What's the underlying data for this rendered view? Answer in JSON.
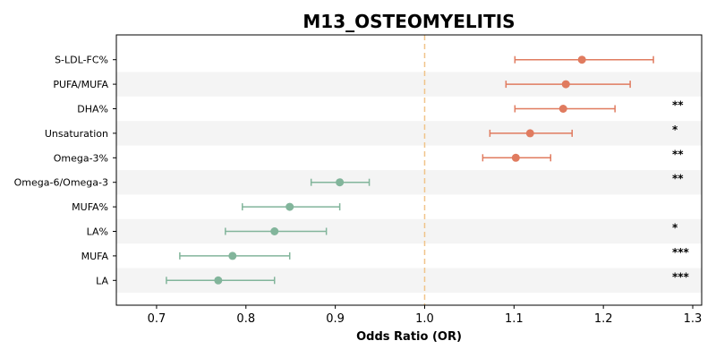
{
  "chart_data": {
    "type": "forest",
    "title": "M13_OSTEOMYELITIS",
    "xlabel": "Odds Ratio (OR)",
    "xlim": [
      0.655,
      1.31
    ],
    "xticks": [
      0.7,
      0.8,
      0.9,
      1.0,
      1.1,
      1.2,
      1.3
    ],
    "xtick_labels": [
      "0.7",
      "0.8",
      "0.9",
      "1.0",
      "1.1",
      "1.2",
      "1.3"
    ],
    "reference_line": 1.0,
    "grid": false,
    "row_shading": "alternating",
    "colors": {
      "positive": "#e07b5f",
      "negative": "#82b59b",
      "reference": "#f0c48a",
      "shade": "#f4f4f4"
    },
    "rows": [
      {
        "label": "S-LDL-FC%",
        "or": 1.176,
        "ci_low": 1.101,
        "ci_high": 1.256,
        "sig": ""
      },
      {
        "label": "PUFA/MUFA",
        "or": 1.158,
        "ci_low": 1.091,
        "ci_high": 1.23,
        "sig": ""
      },
      {
        "label": "DHA%",
        "or": 1.155,
        "ci_low": 1.101,
        "ci_high": 1.213,
        "sig": "**"
      },
      {
        "label": "Unsaturation",
        "or": 1.118,
        "ci_low": 1.073,
        "ci_high": 1.165,
        "sig": "*"
      },
      {
        "label": "Omega-3%",
        "or": 1.102,
        "ci_low": 1.065,
        "ci_high": 1.141,
        "sig": "**"
      },
      {
        "label": "Omega-6/Omega-3",
        "or": 0.905,
        "ci_low": 0.873,
        "ci_high": 0.938,
        "sig": "**"
      },
      {
        "label": "MUFA%",
        "or": 0.849,
        "ci_low": 0.796,
        "ci_high": 0.905,
        "sig": ""
      },
      {
        "label": "LA%",
        "or": 0.832,
        "ci_low": 0.777,
        "ci_high": 0.89,
        "sig": "*"
      },
      {
        "label": "MUFA",
        "or": 0.785,
        "ci_low": 0.726,
        "ci_high": 0.849,
        "sig": "***"
      },
      {
        "label": "LA",
        "or": 0.769,
        "ci_low": 0.711,
        "ci_high": 0.832,
        "sig": "***"
      }
    ]
  }
}
